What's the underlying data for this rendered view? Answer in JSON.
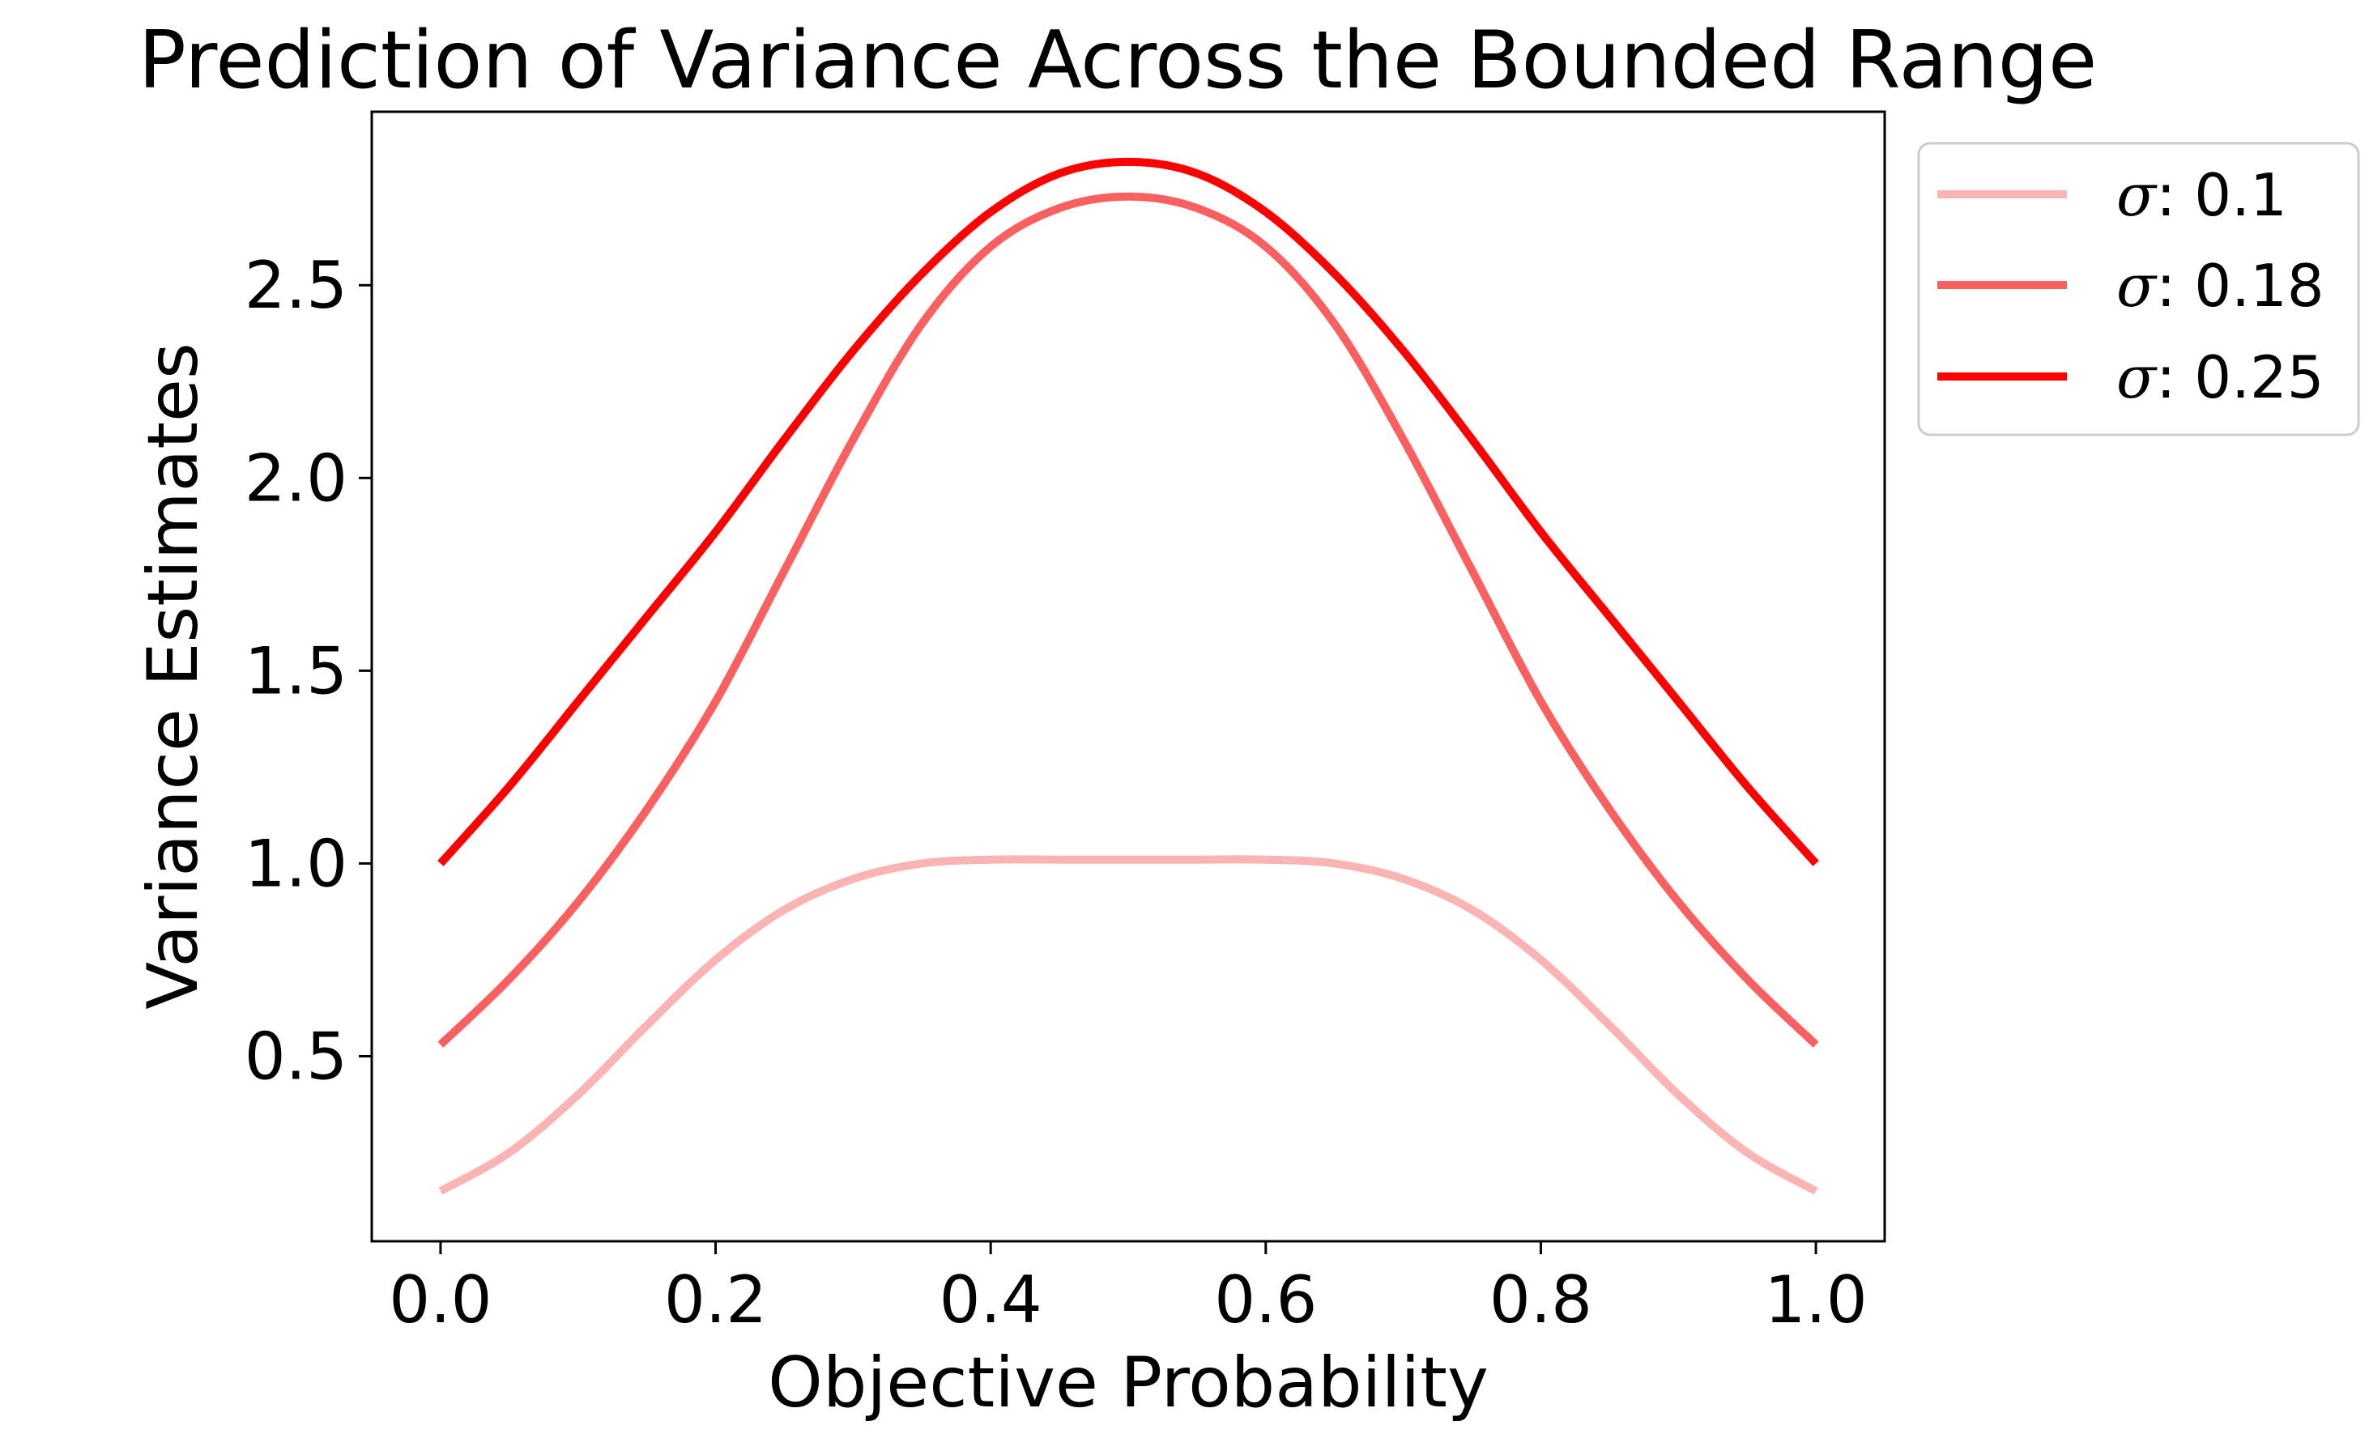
{
  "chart_data": {
    "type": "line",
    "title": "Prediction of Variance Across the Bounded Range",
    "xlabel": "Objective Probability",
    "ylabel": "Variance Estimates",
    "xlim": [
      -0.05,
      1.05
    ],
    "ylim": [
      0.02,
      2.95
    ],
    "xticks": [
      0.0,
      0.2,
      0.4,
      0.6,
      0.8,
      1.0
    ],
    "xtick_labels": [
      "0.0",
      "0.2",
      "0.4",
      "0.6",
      "0.8",
      "1.0"
    ],
    "yticks": [
      0.5,
      1.0,
      1.5,
      2.0,
      2.5
    ],
    "ytick_labels": [
      "0.5",
      "1.0",
      "1.5",
      "2.0",
      "2.5"
    ],
    "legend_position": "outside-top-right",
    "legend_symbol": "σ",
    "series": [
      {
        "name": "σ: 0.1",
        "label_value": ": 0.1",
        "color": "#fbb4b4",
        "x": [
          0.0,
          0.05,
          0.1,
          0.15,
          0.2,
          0.25,
          0.3,
          0.35,
          0.4,
          0.45,
          0.5,
          0.55,
          0.6,
          0.65,
          0.7,
          0.75,
          0.8,
          0.85,
          0.9,
          0.95,
          1.0
        ],
        "y": [
          0.15,
          0.25,
          0.4,
          0.58,
          0.75,
          0.88,
          0.96,
          1.0,
          1.01,
          1.01,
          1.01,
          1.01,
          1.01,
          1.0,
          0.96,
          0.88,
          0.75,
          0.58,
          0.4,
          0.25,
          0.15
        ]
      },
      {
        "name": "σ: 0.18",
        "label_value": ": 0.18",
        "color": "#fa6060",
        "x": [
          0.0,
          0.05,
          0.1,
          0.15,
          0.2,
          0.25,
          0.3,
          0.35,
          0.4,
          0.45,
          0.5,
          0.55,
          0.6,
          0.65,
          0.7,
          0.75,
          0.8,
          0.85,
          0.9,
          0.95,
          1.0
        ],
        "y": [
          0.53,
          0.7,
          0.9,
          1.14,
          1.42,
          1.76,
          2.1,
          2.4,
          2.6,
          2.7,
          2.73,
          2.7,
          2.6,
          2.4,
          2.1,
          1.76,
          1.42,
          1.14,
          0.9,
          0.7,
          0.53
        ]
      },
      {
        "name": "σ: 0.25",
        "label_value": ": 0.25",
        "color": "#ff0000",
        "x": [
          0.0,
          0.05,
          0.1,
          0.15,
          0.2,
          0.25,
          0.3,
          0.35,
          0.4,
          0.45,
          0.5,
          0.55,
          0.6,
          0.65,
          0.7,
          0.75,
          0.8,
          0.85,
          0.9,
          0.95,
          1.0
        ],
        "y": [
          1.0,
          1.2,
          1.42,
          1.64,
          1.86,
          2.1,
          2.33,
          2.53,
          2.69,
          2.79,
          2.82,
          2.79,
          2.69,
          2.53,
          2.33,
          2.1,
          1.86,
          1.64,
          1.42,
          1.2,
          1.0
        ]
      }
    ]
  }
}
